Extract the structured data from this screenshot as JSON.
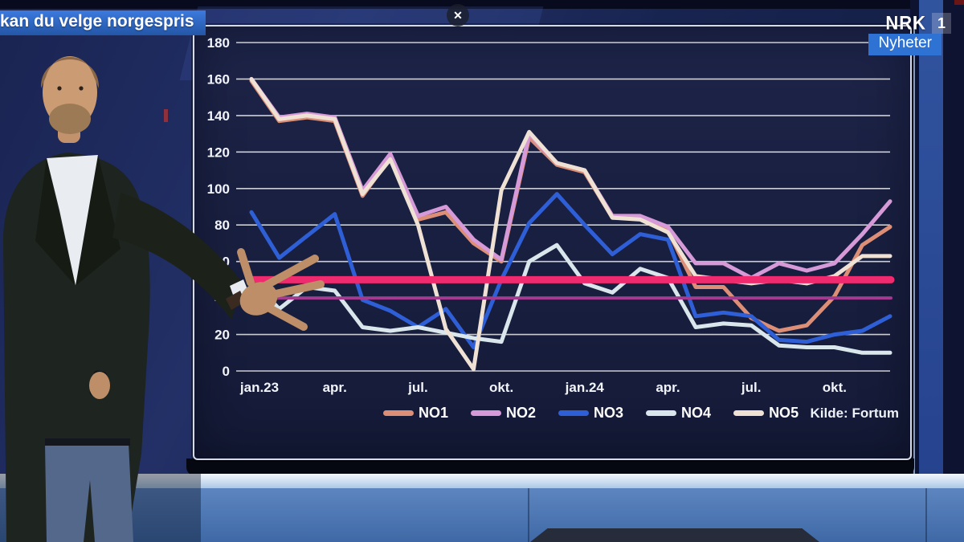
{
  "broadcast": {
    "caption": "kan du velge norgespris",
    "channel_logo": "NRK",
    "channel_number": "1",
    "channel_badge": "Nyheter",
    "close_label": "✕"
  },
  "chart_data": {
    "type": "line",
    "title": "",
    "source": "Kilde: Fortum",
    "ylim": [
      0,
      180
    ],
    "y_ticks": [
      0,
      20,
      40,
      60,
      80,
      100,
      120,
      140,
      160,
      180
    ],
    "grid": true,
    "legend_position": "bottom",
    "x_tick_labels": [
      "jan.23",
      "apr.",
      "jul.",
      "okt.",
      "jan.24",
      "apr.",
      "jul.",
      "okt."
    ],
    "x_tick_indices": [
      0,
      3,
      6,
      9,
      12,
      15,
      18,
      21
    ],
    "categories": [
      "jan.23",
      "feb.23",
      "mar.23",
      "apr.23",
      "mai.23",
      "jun.23",
      "jul.23",
      "aug.23",
      "sep.23",
      "okt.23",
      "nov.23",
      "des.23",
      "jan.24",
      "feb.24",
      "mar.24",
      "apr.24",
      "mai.24",
      "jun.24",
      "jul.24",
      "aug.24",
      "sep.24",
      "okt.24",
      "nov.24",
      "des.24"
    ],
    "series": [
      {
        "name": "NO1",
        "color": "#dd8e76",
        "values": [
          159,
          137,
          139,
          137,
          96,
          117,
          83,
          87,
          70,
          60,
          128,
          113,
          109,
          84,
          84,
          77,
          46,
          46,
          29,
          22,
          25,
          41,
          69,
          79
        ]
      },
      {
        "name": "NO2",
        "color": "#d79ad8",
        "values": [
          160,
          139,
          141,
          139,
          99,
          119,
          85,
          90,
          72,
          61,
          130,
          114,
          110,
          85,
          85,
          79,
          59,
          59,
          51,
          59,
          55,
          59,
          75,
          93
        ]
      },
      {
        "name": "NO3",
        "color": "#2f5fd7",
        "values": [
          87,
          62,
          74,
          86,
          39,
          33,
          24,
          34,
          13,
          50,
          81,
          97,
          80,
          64,
          75,
          72,
          30,
          32,
          30,
          17,
          16,
          20,
          22,
          30
        ]
      },
      {
        "name": "NO4",
        "color": "#d9e6ec",
        "values": [
          50,
          34,
          46,
          44,
          24,
          22,
          24,
          21,
          18,
          16,
          60,
          69,
          48,
          43,
          56,
          51,
          24,
          26,
          25,
          14,
          13,
          13,
          10,
          10
        ]
      },
      {
        "name": "NO5",
        "color": "#efe2d4",
        "values": [
          160,
          138,
          140,
          138,
          97,
          116,
          80,
          23,
          1,
          99,
          131,
          114,
          110,
          84,
          83,
          76,
          52,
          50,
          48,
          50,
          48,
          52,
          63,
          63
        ]
      }
    ],
    "reference_lines": [
      {
        "value": 50,
        "color": "#ef2a6e",
        "width": 9
      },
      {
        "value": 40,
        "color": "#a23a90",
        "width": 4
      }
    ]
  }
}
